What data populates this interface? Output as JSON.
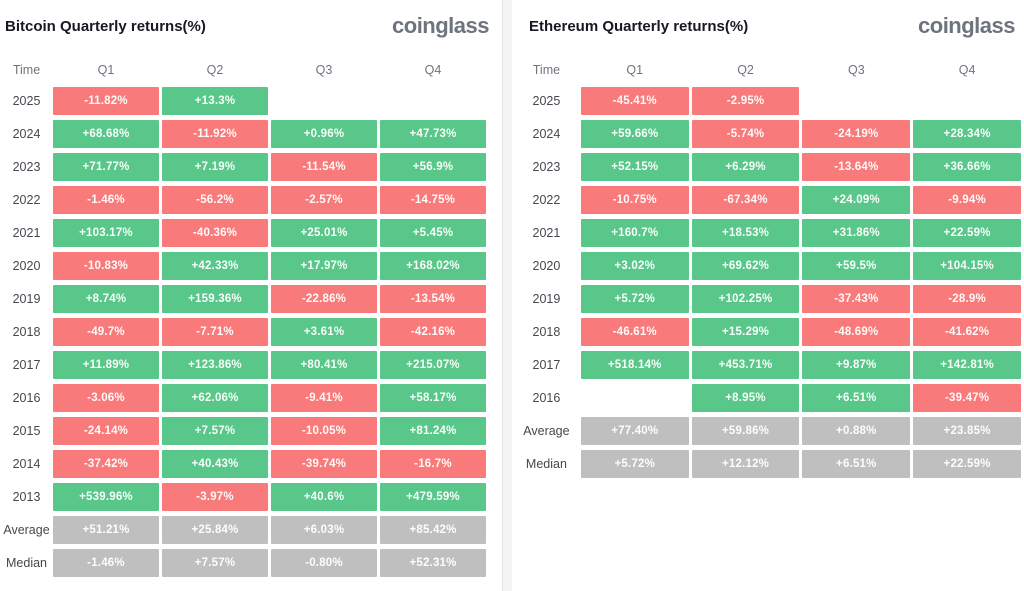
{
  "colors": {
    "pos": "#58c789",
    "neg": "#f87a7a",
    "sum": "#bfbfbf"
  },
  "chart_data": [
    {
      "type": "heatmap",
      "title": "Bitcoin Quarterly returns(%)",
      "brand": "coinglass",
      "columns": [
        "Time",
        "Q1",
        "Q2",
        "Q3",
        "Q4"
      ],
      "rows": [
        {
          "label": "2025",
          "cells": [
            {
              "value": "-11.82%",
              "color": "neg"
            },
            {
              "value": "+13.3%",
              "color": "pos"
            },
            null,
            null
          ]
        },
        {
          "label": "2024",
          "cells": [
            {
              "value": "+68.68%",
              "color": "pos"
            },
            {
              "value": "-11.92%",
              "color": "neg"
            },
            {
              "value": "+0.96%",
              "color": "pos"
            },
            {
              "value": "+47.73%",
              "color": "pos"
            }
          ]
        },
        {
          "label": "2023",
          "cells": [
            {
              "value": "+71.77%",
              "color": "pos"
            },
            {
              "value": "+7.19%",
              "color": "pos"
            },
            {
              "value": "-11.54%",
              "color": "neg"
            },
            {
              "value": "+56.9%",
              "color": "pos"
            }
          ]
        },
        {
          "label": "2022",
          "cells": [
            {
              "value": "-1.46%",
              "color": "neg"
            },
            {
              "value": "-56.2%",
              "color": "neg"
            },
            {
              "value": "-2.57%",
              "color": "neg"
            },
            {
              "value": "-14.75%",
              "color": "neg"
            }
          ]
        },
        {
          "label": "2021",
          "cells": [
            {
              "value": "+103.17%",
              "color": "pos"
            },
            {
              "value": "-40.36%",
              "color": "neg"
            },
            {
              "value": "+25.01%",
              "color": "pos"
            },
            {
              "value": "+5.45%",
              "color": "pos"
            }
          ]
        },
        {
          "label": "2020",
          "cells": [
            {
              "value": "-10.83%",
              "color": "neg"
            },
            {
              "value": "+42.33%",
              "color": "pos"
            },
            {
              "value": "+17.97%",
              "color": "pos"
            },
            {
              "value": "+168.02%",
              "color": "pos"
            }
          ]
        },
        {
          "label": "2019",
          "cells": [
            {
              "value": "+8.74%",
              "color": "pos"
            },
            {
              "value": "+159.36%",
              "color": "pos"
            },
            {
              "value": "-22.86%",
              "color": "neg"
            },
            {
              "value": "-13.54%",
              "color": "neg"
            }
          ]
        },
        {
          "label": "2018",
          "cells": [
            {
              "value": "-49.7%",
              "color": "neg"
            },
            {
              "value": "-7.71%",
              "color": "neg"
            },
            {
              "value": "+3.61%",
              "color": "pos"
            },
            {
              "value": "-42.16%",
              "color": "neg"
            }
          ]
        },
        {
          "label": "2017",
          "cells": [
            {
              "value": "+11.89%",
              "color": "pos"
            },
            {
              "value": "+123.86%",
              "color": "pos"
            },
            {
              "value": "+80.41%",
              "color": "pos"
            },
            {
              "value": "+215.07%",
              "color": "pos"
            }
          ]
        },
        {
          "label": "2016",
          "cells": [
            {
              "value": "-3.06%",
              "color": "neg"
            },
            {
              "value": "+62.06%",
              "color": "pos"
            },
            {
              "value": "-9.41%",
              "color": "neg"
            },
            {
              "value": "+58.17%",
              "color": "pos"
            }
          ]
        },
        {
          "label": "2015",
          "cells": [
            {
              "value": "-24.14%",
              "color": "neg"
            },
            {
              "value": "+7.57%",
              "color": "pos"
            },
            {
              "value": "-10.05%",
              "color": "neg"
            },
            {
              "value": "+81.24%",
              "color": "pos"
            }
          ]
        },
        {
          "label": "2014",
          "cells": [
            {
              "value": "-37.42%",
              "color": "neg"
            },
            {
              "value": "+40.43%",
              "color": "pos"
            },
            {
              "value": "-39.74%",
              "color": "neg"
            },
            {
              "value": "-16.7%",
              "color": "neg"
            }
          ]
        },
        {
          "label": "2013",
          "cells": [
            {
              "value": "+539.96%",
              "color": "pos"
            },
            {
              "value": "-3.97%",
              "color": "neg"
            },
            {
              "value": "+40.6%",
              "color": "pos"
            },
            {
              "value": "+479.59%",
              "color": "pos"
            }
          ]
        },
        {
          "label": "Average",
          "cells": [
            {
              "value": "+51.21%",
              "color": "sum"
            },
            {
              "value": "+25.84%",
              "color": "sum"
            },
            {
              "value": "+6.03%",
              "color": "sum"
            },
            {
              "value": "+85.42%",
              "color": "sum"
            }
          ]
        },
        {
          "label": "Median",
          "cells": [
            {
              "value": "-1.46%",
              "color": "sum"
            },
            {
              "value": "+7.57%",
              "color": "sum"
            },
            {
              "value": "-0.80%",
              "color": "sum"
            },
            {
              "value": "+52.31%",
              "color": "sum"
            }
          ]
        }
      ]
    },
    {
      "type": "heatmap",
      "title": "Ethereum Quarterly returns(%)",
      "brand": "coinglass",
      "columns": [
        "Time",
        "Q1",
        "Q2",
        "Q3",
        "Q4"
      ],
      "rows": [
        {
          "label": "2025",
          "cells": [
            {
              "value": "-45.41%",
              "color": "neg"
            },
            {
              "value": "-2.95%",
              "color": "neg"
            },
            null,
            null
          ]
        },
        {
          "label": "2024",
          "cells": [
            {
              "value": "+59.66%",
              "color": "pos"
            },
            {
              "value": "-5.74%",
              "color": "neg"
            },
            {
              "value": "-24.19%",
              "color": "neg"
            },
            {
              "value": "+28.34%",
              "color": "pos"
            }
          ]
        },
        {
          "label": "2023",
          "cells": [
            {
              "value": "+52.15%",
              "color": "pos"
            },
            {
              "value": "+6.29%",
              "color": "pos"
            },
            {
              "value": "-13.64%",
              "color": "neg"
            },
            {
              "value": "+36.66%",
              "color": "pos"
            }
          ]
        },
        {
          "label": "2022",
          "cells": [
            {
              "value": "-10.75%",
              "color": "neg"
            },
            {
              "value": "-67.34%",
              "color": "neg"
            },
            {
              "value": "+24.09%",
              "color": "pos"
            },
            {
              "value": "-9.94%",
              "color": "neg"
            }
          ]
        },
        {
          "label": "2021",
          "cells": [
            {
              "value": "+160.7%",
              "color": "pos"
            },
            {
              "value": "+18.53%",
              "color": "pos"
            },
            {
              "value": "+31.86%",
              "color": "pos"
            },
            {
              "value": "+22.59%",
              "color": "pos"
            }
          ]
        },
        {
          "label": "2020",
          "cells": [
            {
              "value": "+3.02%",
              "color": "pos"
            },
            {
              "value": "+69.62%",
              "color": "pos"
            },
            {
              "value": "+59.5%",
              "color": "pos"
            },
            {
              "value": "+104.15%",
              "color": "pos"
            }
          ]
        },
        {
          "label": "2019",
          "cells": [
            {
              "value": "+5.72%",
              "color": "pos"
            },
            {
              "value": "+102.25%",
              "color": "pos"
            },
            {
              "value": "-37.43%",
              "color": "neg"
            },
            {
              "value": "-28.9%",
              "color": "neg"
            }
          ]
        },
        {
          "label": "2018",
          "cells": [
            {
              "value": "-46.61%",
              "color": "neg"
            },
            {
              "value": "+15.29%",
              "color": "pos"
            },
            {
              "value": "-48.69%",
              "color": "neg"
            },
            {
              "value": "-41.62%",
              "color": "neg"
            }
          ]
        },
        {
          "label": "2017",
          "cells": [
            {
              "value": "+518.14%",
              "color": "pos"
            },
            {
              "value": "+453.71%",
              "color": "pos"
            },
            {
              "value": "+9.87%",
              "color": "pos"
            },
            {
              "value": "+142.81%",
              "color": "pos"
            }
          ]
        },
        {
          "label": "2016",
          "cells": [
            null,
            {
              "value": "+8.95%",
              "color": "pos"
            },
            {
              "value": "+6.51%",
              "color": "pos"
            },
            {
              "value": "-39.47%",
              "color": "neg"
            }
          ]
        },
        {
          "label": "Average",
          "cells": [
            {
              "value": "+77.40%",
              "color": "sum"
            },
            {
              "value": "+59.86%",
              "color": "sum"
            },
            {
              "value": "+0.88%",
              "color": "sum"
            },
            {
              "value": "+23.85%",
              "color": "sum"
            }
          ]
        },
        {
          "label": "Median",
          "cells": [
            {
              "value": "+5.72%",
              "color": "sum"
            },
            {
              "value": "+12.12%",
              "color": "sum"
            },
            {
              "value": "+6.51%",
              "color": "sum"
            },
            {
              "value": "+22.59%",
              "color": "sum"
            }
          ]
        }
      ]
    }
  ]
}
